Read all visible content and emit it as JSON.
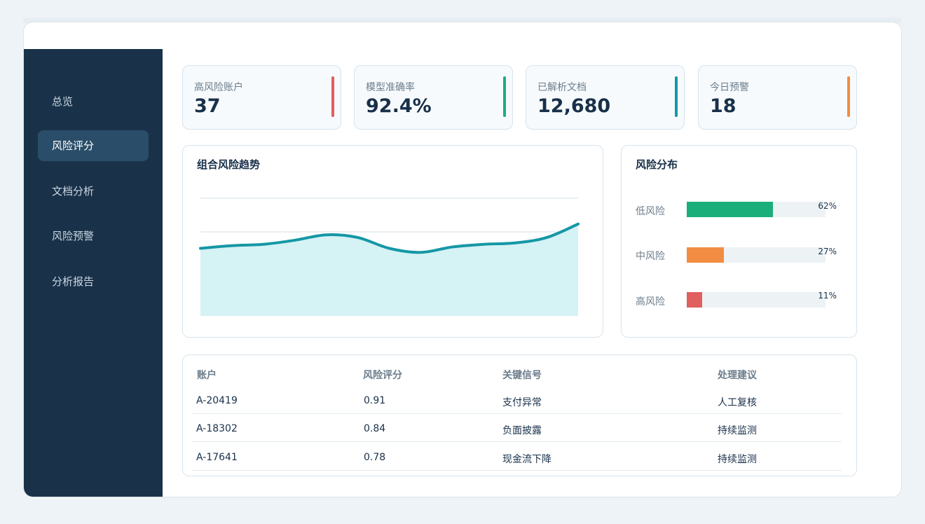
{
  "sidebar": {
    "items": [
      {
        "label": "总览",
        "active": false
      },
      {
        "label": "风险评分",
        "active": true
      },
      {
        "label": "文档分析",
        "active": false
      },
      {
        "label": "风险预警",
        "active": false
      },
      {
        "label": "分析报告",
        "active": false
      }
    ]
  },
  "kpis": [
    {
      "label": "高风险账户",
      "value": "37",
      "accent": "#e05f5f"
    },
    {
      "label": "模型准确率",
      "value": "92.4%",
      "accent": "#1aae7a"
    },
    {
      "label": "已解析文档",
      "value": "12,680",
      "accent": "#1597a5"
    },
    {
      "label": "今日预警",
      "value": "18",
      "accent": "#f28c42"
    }
  ],
  "trend_panel": {
    "title": "组合风险趋势"
  },
  "distribution_panel": {
    "title": "风险分布",
    "rows": [
      {
        "label": "低风险",
        "percent": "62%",
        "value": 0.62,
        "color": "#1aae7a"
      },
      {
        "label": "中风险",
        "percent": "27%",
        "value": 0.27,
        "color": "#f28c42"
      },
      {
        "label": "高风险",
        "percent": "11%",
        "value": 0.11,
        "color": "#e05f5f"
      }
    ]
  },
  "table": {
    "headers": [
      "账户",
      "风险评分",
      "关键信号",
      "处理建议"
    ],
    "rows": [
      [
        "A-20419",
        "0.91",
        "支付异常",
        "人工复核"
      ],
      [
        "A-18302",
        "0.84",
        "负面披露",
        "持续监测"
      ],
      [
        "A-17641",
        "0.78",
        "现金流下降",
        "持续监测"
      ]
    ]
  },
  "chart_data": {
    "type": "area",
    "title": "组合风险趋势",
    "xlabel": "",
    "ylabel": "",
    "grid": true,
    "ylim": [
      0,
      100
    ],
    "x": [
      0,
      1,
      2,
      3,
      4,
      5,
      6,
      7,
      8,
      9,
      10,
      11,
      12
    ],
    "series": [
      {
        "values": [
          50,
          52,
          53,
          56,
          60,
          58,
          50,
          47,
          51,
          53,
          54,
          58,
          68
        ],
        "color": "#1597a5"
      }
    ]
  }
}
